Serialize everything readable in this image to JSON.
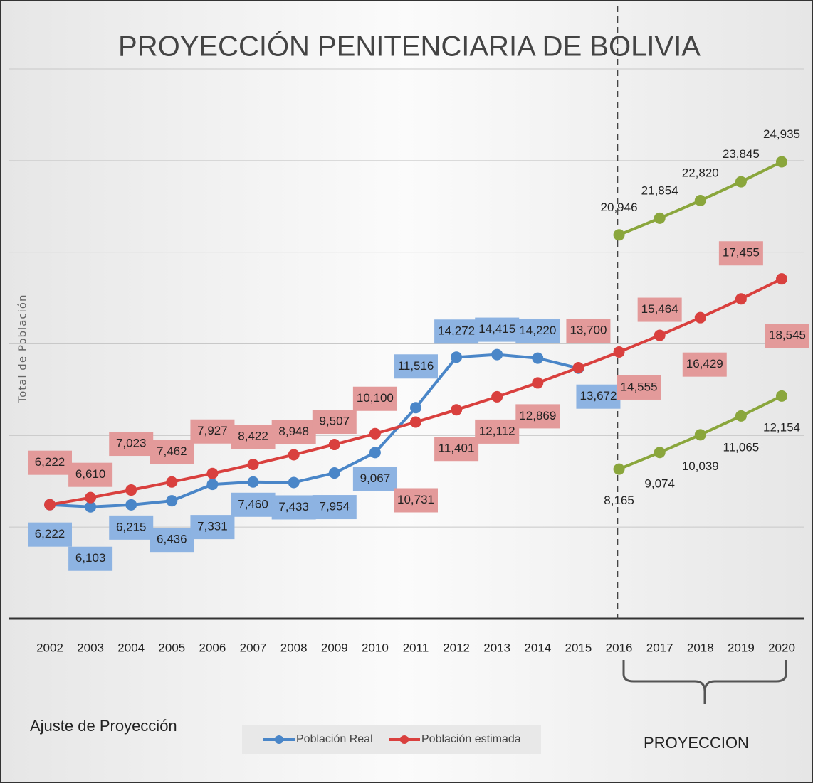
{
  "chart_data": {
    "type": "line",
    "title": "PROYECCIÓN PENITENCIARIA DE BOLIVIA",
    "y_label": "Total de Población",
    "annotations": [
      "Ajuste de Proyección",
      "PROYECCION"
    ],
    "categories": [
      "2002",
      "2003",
      "2004",
      "2005",
      "2006",
      "2007",
      "2008",
      "2009",
      "2010",
      "2011",
      "2012",
      "2013",
      "2014",
      "2015",
      "2016",
      "2017",
      "2018",
      "2019",
      "2020"
    ],
    "series": [
      {
        "name": "Población Real",
        "color": "#4a86c8",
        "label_box": "#8db3e2",
        "values": [
          6222,
          6103,
          6215,
          6436,
          7331,
          7460,
          7433,
          7954,
          9067,
          11516,
          14272,
          14415,
          14220,
          13672,
          null,
          null,
          null,
          null,
          null
        ],
        "value_labels": [
          "6,222",
          "6,103",
          "6,215",
          "6,436",
          "7,331",
          "7,460",
          "7,433",
          "7,954",
          "9,067",
          "11,516",
          "14,272",
          "14,415",
          "14,220",
          "13,672",
          null,
          null,
          null,
          null,
          null
        ]
      },
      {
        "name": "Población estimada",
        "color": "#d9403e",
        "label_box": "#e39a9a",
        "values": [
          6222,
          6610,
          7023,
          7462,
          7927,
          8422,
          8948,
          9507,
          10100,
          10731,
          11401,
          12112,
          12869,
          13700,
          14555,
          15464,
          16429,
          17455,
          18545
        ],
        "value_labels": [
          "6,222",
          "6,610",
          "7,023",
          "7,462",
          "7,927",
          "8,422",
          "8,948",
          "9,507",
          "10,100",
          "10,731",
          "11,401",
          "12,112",
          "12,869",
          "13,700",
          "14,555",
          "15,464",
          "16,429",
          "17,455",
          "18,545"
        ]
      },
      {
        "color": "#8aa63c",
        "values": [
          null,
          null,
          null,
          null,
          null,
          null,
          null,
          null,
          null,
          null,
          null,
          null,
          null,
          null,
          20946,
          21854,
          22820,
          23845,
          24935
        ],
        "value_labels": [
          null,
          null,
          null,
          null,
          null,
          null,
          null,
          null,
          null,
          null,
          null,
          null,
          null,
          null,
          "20,946",
          "21,854",
          "22,820",
          "23,845",
          "24,935"
        ]
      },
      {
        "color": "#8aa63c",
        "values": [
          null,
          null,
          null,
          null,
          null,
          null,
          null,
          null,
          null,
          null,
          null,
          null,
          null,
          null,
          8165,
          9074,
          10039,
          11065,
          12154
        ],
        "value_labels": [
          null,
          null,
          null,
          null,
          null,
          null,
          null,
          null,
          null,
          null,
          null,
          null,
          null,
          null,
          "8,165",
          "9,074",
          "10,039",
          "11,065",
          "12,154"
        ]
      }
    ],
    "ylim": [
      0,
      30000
    ],
    "yticks": [
      0,
      5000,
      10000,
      15000,
      20000,
      25000,
      30000
    ],
    "grid": true,
    "legend": "bottom"
  }
}
